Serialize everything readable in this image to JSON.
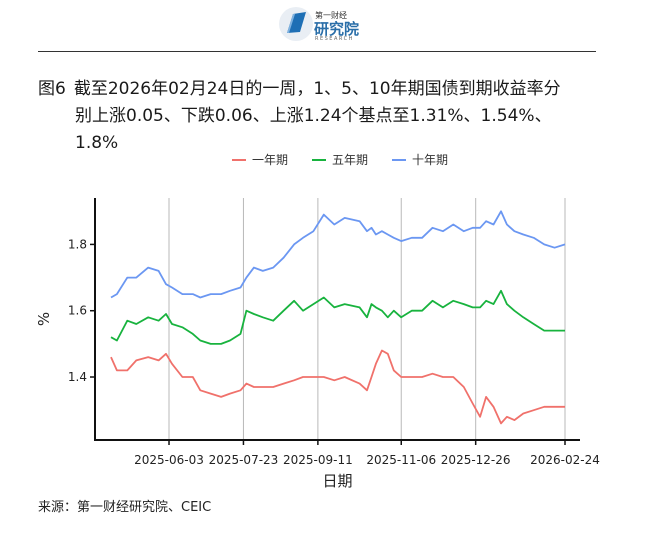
{
  "header": {
    "logo_small_text": "第一财经",
    "logo_name": "研究院",
    "logo_sub": "RESEARCH"
  },
  "title": {
    "prefix": "图6",
    "line1": "截至2026年02月24日的一周，1、5、10年期国债到期收益率分",
    "line2": "别上涨0.05、下跌0.06、上涨1.24个基点至1.31%、1.54%、",
    "line3": "1.8%"
  },
  "source": "来源：第一财经研究院、CEIC",
  "colors": {
    "1y": "#f0716b",
    "5y": "#18b33e",
    "10y": "#6b97f2"
  },
  "chart_data": {
    "type": "line",
    "title": "",
    "xlabel": "日期",
    "ylabel": "%",
    "ylim": [
      1.21,
      1.94
    ],
    "x_range": [
      "2025-04-21",
      "2026-02-24"
    ],
    "xticks": [
      "2025-06-03",
      "2025-07-23",
      "2025-09-11",
      "2025-11-06",
      "2025-12-26",
      "2026-02-24"
    ],
    "yticks": [
      1.4,
      1.6,
      1.8
    ],
    "ytick_labels": [
      "1.4",
      "1.6",
      "1.8"
    ],
    "grid": "vertical lines at x ticks",
    "legend_position": "top",
    "series": [
      {
        "name": "一年期",
        "key": "1y",
        "points": [
          [
            "2025-04-25",
            1.46
          ],
          [
            "2025-04-29",
            1.42
          ],
          [
            "2025-05-06",
            1.42
          ],
          [
            "2025-05-12",
            1.45
          ],
          [
            "2025-05-20",
            1.46
          ],
          [
            "2025-05-27",
            1.45
          ],
          [
            "2025-06-01",
            1.47
          ],
          [
            "2025-06-05",
            1.44
          ],
          [
            "2025-06-12",
            1.4
          ],
          [
            "2025-06-19",
            1.4
          ],
          [
            "2025-06-24",
            1.36
          ],
          [
            "2025-07-01",
            1.35
          ],
          [
            "2025-07-08",
            1.34
          ],
          [
            "2025-07-14",
            1.35
          ],
          [
            "2025-07-21",
            1.36
          ],
          [
            "2025-07-25",
            1.38
          ],
          [
            "2025-07-30",
            1.37
          ],
          [
            "2025-08-05",
            1.37
          ],
          [
            "2025-08-12",
            1.37
          ],
          [
            "2025-08-19",
            1.38
          ],
          [
            "2025-08-26",
            1.39
          ],
          [
            "2025-09-01",
            1.4
          ],
          [
            "2025-09-08",
            1.4
          ],
          [
            "2025-09-15",
            1.4
          ],
          [
            "2025-09-22",
            1.39
          ],
          [
            "2025-09-29",
            1.4
          ],
          [
            "2025-10-09",
            1.38
          ],
          [
            "2025-10-14",
            1.36
          ],
          [
            "2025-10-17",
            1.4
          ],
          [
            "2025-10-20",
            1.44
          ],
          [
            "2025-10-24",
            1.48
          ],
          [
            "2025-10-28",
            1.47
          ],
          [
            "2025-11-01",
            1.42
          ],
          [
            "2025-11-06",
            1.4
          ],
          [
            "2025-11-13",
            1.4
          ],
          [
            "2025-11-20",
            1.4
          ],
          [
            "2025-11-27",
            1.41
          ],
          [
            "2025-12-04",
            1.4
          ],
          [
            "2025-12-11",
            1.4
          ],
          [
            "2025-12-18",
            1.37
          ],
          [
            "2025-12-24",
            1.32
          ],
          [
            "2025-12-29",
            1.28
          ],
          [
            "2026-01-02",
            1.34
          ],
          [
            "2026-01-07",
            1.31
          ],
          [
            "2026-01-12",
            1.26
          ],
          [
            "2026-01-16",
            1.28
          ],
          [
            "2026-01-21",
            1.27
          ],
          [
            "2026-01-27",
            1.29
          ],
          [
            "2026-02-03",
            1.3
          ],
          [
            "2026-02-10",
            1.31
          ],
          [
            "2026-02-17",
            1.31
          ],
          [
            "2026-02-24",
            1.31
          ]
        ]
      },
      {
        "name": "五年期",
        "key": "5y",
        "points": [
          [
            "2025-04-25",
            1.52
          ],
          [
            "2025-04-29",
            1.51
          ],
          [
            "2025-05-06",
            1.57
          ],
          [
            "2025-05-12",
            1.56
          ],
          [
            "2025-05-20",
            1.58
          ],
          [
            "2025-05-27",
            1.57
          ],
          [
            "2025-06-01",
            1.59
          ],
          [
            "2025-06-05",
            1.56
          ],
          [
            "2025-06-12",
            1.55
          ],
          [
            "2025-06-19",
            1.53
          ],
          [
            "2025-06-24",
            1.51
          ],
          [
            "2025-07-01",
            1.5
          ],
          [
            "2025-07-08",
            1.5
          ],
          [
            "2025-07-14",
            1.51
          ],
          [
            "2025-07-21",
            1.53
          ],
          [
            "2025-07-25",
            1.6
          ],
          [
            "2025-07-30",
            1.59
          ],
          [
            "2025-08-05",
            1.58
          ],
          [
            "2025-08-12",
            1.57
          ],
          [
            "2025-08-19",
            1.6
          ],
          [
            "2025-08-26",
            1.63
          ],
          [
            "2025-09-01",
            1.6
          ],
          [
            "2025-09-08",
            1.62
          ],
          [
            "2025-09-15",
            1.64
          ],
          [
            "2025-09-22",
            1.61
          ],
          [
            "2025-09-29",
            1.62
          ],
          [
            "2025-10-09",
            1.61
          ],
          [
            "2025-10-14",
            1.58
          ],
          [
            "2025-10-17",
            1.62
          ],
          [
            "2025-10-20",
            1.61
          ],
          [
            "2025-10-24",
            1.6
          ],
          [
            "2025-10-28",
            1.58
          ],
          [
            "2025-11-01",
            1.6
          ],
          [
            "2025-11-06",
            1.58
          ],
          [
            "2025-11-13",
            1.6
          ],
          [
            "2025-11-20",
            1.6
          ],
          [
            "2025-11-27",
            1.63
          ],
          [
            "2025-12-04",
            1.61
          ],
          [
            "2025-12-11",
            1.63
          ],
          [
            "2025-12-18",
            1.62
          ],
          [
            "2025-12-24",
            1.61
          ],
          [
            "2025-12-29",
            1.61
          ],
          [
            "2026-01-02",
            1.63
          ],
          [
            "2026-01-07",
            1.62
          ],
          [
            "2026-01-12",
            1.66
          ],
          [
            "2026-01-16",
            1.62
          ],
          [
            "2026-01-21",
            1.6
          ],
          [
            "2026-01-27",
            1.58
          ],
          [
            "2026-02-03",
            1.56
          ],
          [
            "2026-02-10",
            1.54
          ],
          [
            "2026-02-17",
            1.54
          ],
          [
            "2026-02-24",
            1.54
          ]
        ]
      },
      {
        "name": "十年期",
        "key": "10y",
        "points": [
          [
            "2025-04-25",
            1.64
          ],
          [
            "2025-04-29",
            1.65
          ],
          [
            "2025-05-06",
            1.7
          ],
          [
            "2025-05-12",
            1.7
          ],
          [
            "2025-05-20",
            1.73
          ],
          [
            "2025-05-27",
            1.72
          ],
          [
            "2025-06-01",
            1.68
          ],
          [
            "2025-06-05",
            1.67
          ],
          [
            "2025-06-12",
            1.65
          ],
          [
            "2025-06-19",
            1.65
          ],
          [
            "2025-06-24",
            1.64
          ],
          [
            "2025-07-01",
            1.65
          ],
          [
            "2025-07-08",
            1.65
          ],
          [
            "2025-07-14",
            1.66
          ],
          [
            "2025-07-21",
            1.67
          ],
          [
            "2025-07-25",
            1.7
          ],
          [
            "2025-07-30",
            1.73
          ],
          [
            "2025-08-05",
            1.72
          ],
          [
            "2025-08-12",
            1.73
          ],
          [
            "2025-08-19",
            1.76
          ],
          [
            "2025-08-26",
            1.8
          ],
          [
            "2025-09-01",
            1.82
          ],
          [
            "2025-09-08",
            1.84
          ],
          [
            "2025-09-15",
            1.89
          ],
          [
            "2025-09-22",
            1.86
          ],
          [
            "2025-09-29",
            1.88
          ],
          [
            "2025-10-09",
            1.87
          ],
          [
            "2025-10-14",
            1.84
          ],
          [
            "2025-10-17",
            1.85
          ],
          [
            "2025-10-20",
            1.83
          ],
          [
            "2025-10-24",
            1.84
          ],
          [
            "2025-10-28",
            1.83
          ],
          [
            "2025-11-01",
            1.82
          ],
          [
            "2025-11-06",
            1.81
          ],
          [
            "2025-11-13",
            1.82
          ],
          [
            "2025-11-20",
            1.82
          ],
          [
            "2025-11-27",
            1.85
          ],
          [
            "2025-12-04",
            1.84
          ],
          [
            "2025-12-11",
            1.86
          ],
          [
            "2025-12-18",
            1.84
          ],
          [
            "2025-12-24",
            1.85
          ],
          [
            "2025-12-29",
            1.85
          ],
          [
            "2026-01-02",
            1.87
          ],
          [
            "2026-01-07",
            1.86
          ],
          [
            "2026-01-12",
            1.9
          ],
          [
            "2026-01-16",
            1.86
          ],
          [
            "2026-01-21",
            1.84
          ],
          [
            "2026-01-27",
            1.83
          ],
          [
            "2026-02-03",
            1.82
          ],
          [
            "2026-02-10",
            1.8
          ],
          [
            "2026-02-17",
            1.79
          ],
          [
            "2026-02-24",
            1.8
          ]
        ]
      }
    ]
  }
}
